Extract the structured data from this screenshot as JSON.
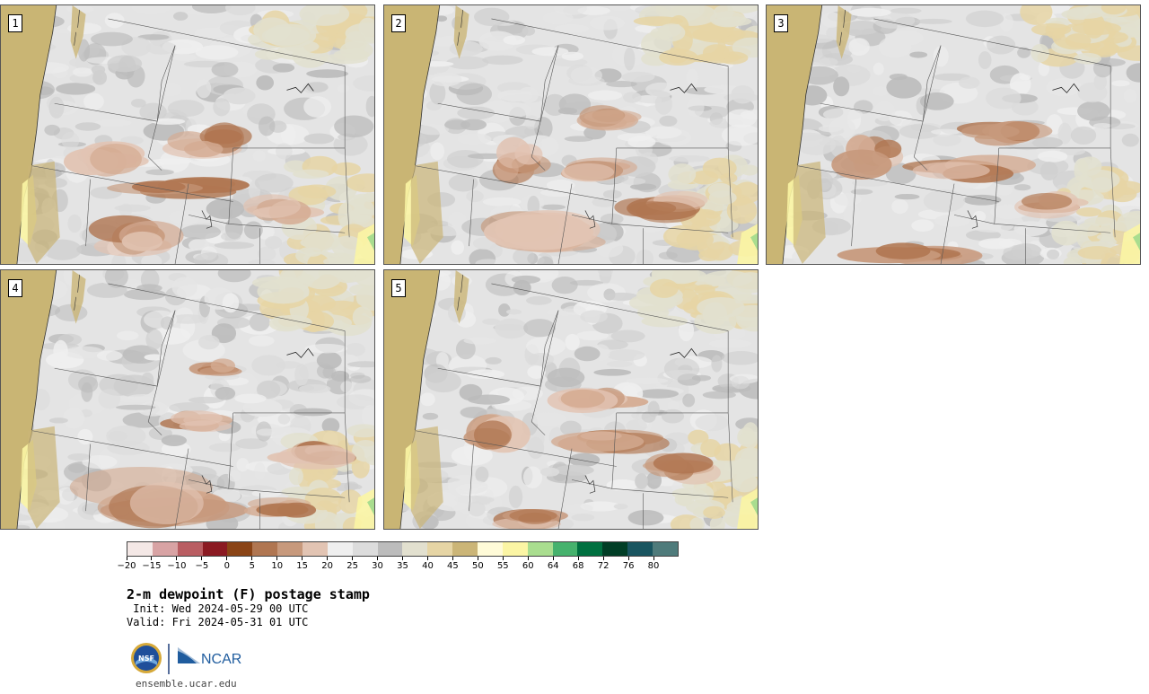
{
  "panels": [
    {
      "label": "1"
    },
    {
      "label": "2"
    },
    {
      "label": "3"
    },
    {
      "label": "4"
    },
    {
      "label": "5"
    }
  ],
  "colorbar": {
    "colors": [
      "#f4e8e6",
      "#d8a3a4",
      "#b95d62",
      "#8b1a22",
      "#8a4416",
      "#b07651",
      "#c7997c",
      "#e2c4b3",
      "#efefef",
      "#dcdcdc",
      "#bcbcbc",
      "#e2e0cf",
      "#e6d5a5",
      "#cbb577",
      "#fffbd8",
      "#fbf5a4",
      "#a9dd8f",
      "#46b26d",
      "#007040",
      "#013e26",
      "#195560",
      "#4f7b7b"
    ],
    "ticks": [
      "−20",
      "−15",
      "−10",
      "−5",
      "0",
      "5",
      "10",
      "15",
      "20",
      "25",
      "30",
      "35",
      "40",
      "45",
      "50",
      "55",
      "60",
      "64",
      "68",
      "72",
      "76",
      "80"
    ]
  },
  "title": "2-m dewpoint (F) postage stamp",
  "init": " Init: Wed 2024-05-29 00 UTC",
  "valid": "Valid: Fri 2024-05-31 01 UTC",
  "logos": {
    "nsf": "NSF",
    "ncar": "NCAR"
  },
  "site": "ensemble.ucar.edu"
}
